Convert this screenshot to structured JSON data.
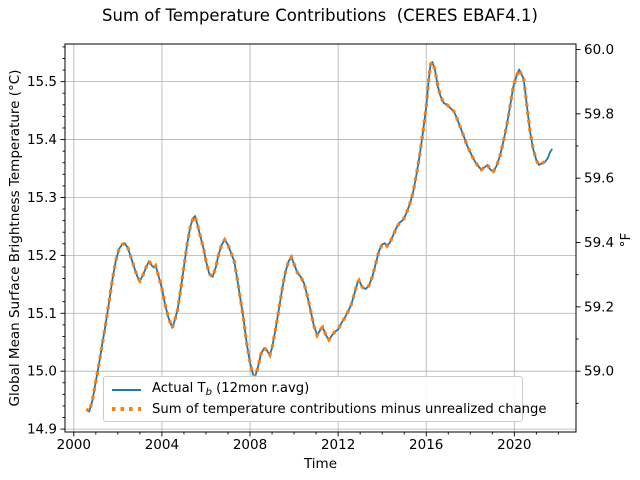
{
  "title": "Sum of Temperature Contributions  (CERES EBAF4.1)",
  "axes": {
    "x": {
      "label": "Time",
      "tick_values": [
        2000,
        2004,
        2008,
        2012,
        2016,
        2020
      ],
      "tick_labels": [
        "2000",
        "2004",
        "2008",
        "2012",
        "2016",
        "2020"
      ]
    },
    "y_left": {
      "label": "Global Mean Surface Brightness Temperature (°C)",
      "tick_values": [
        14.9,
        15.0,
        15.1,
        15.2,
        15.3,
        15.4,
        15.5
      ],
      "tick_labels": [
        "14.9",
        "15.0",
        "15.1",
        "15.2",
        "15.3",
        "15.4",
        "15.5"
      ]
    },
    "y_right": {
      "label": "°F",
      "tick_values": [
        59.0,
        59.2,
        59.4,
        59.6,
        59.8,
        60.0
      ],
      "tick_labels": [
        "59.0",
        "59.2",
        "59.4",
        "59.6",
        "59.8",
        "60.0"
      ]
    }
  },
  "legend": {
    "items": [
      {
        "pre": "Actual T",
        "sub": "b",
        "post": " (12mon r.avg)",
        "color": "#1f77b4",
        "style": "solid"
      },
      {
        "pre": "Sum of temperature contributions minus unrealized change",
        "sub": "",
        "post": "",
        "color": "#ff7f0e",
        "style": "dotted"
      }
    ],
    "position": "lower left"
  },
  "colors": {
    "actual_line": "#1f77b4",
    "sum_dotted": "#ff7f0e",
    "grid": "#b0b0b0",
    "spine": "#000000"
  },
  "chart_data": {
    "type": "line",
    "title": "Sum of Temperature Contributions  (CERES EBAF4.1)",
    "xlabel": "Time",
    "ylabel_left": "Global Mean Surface Brightness Temperature (°C)",
    "ylabel_right": "°F",
    "xlim": [
      1999.6,
      2022.8
    ],
    "ylim_c": [
      14.895,
      15.565
    ],
    "grid": true,
    "legend_position": "lower left",
    "fahrenheit_axis": "F = C * 1.8 + 32",
    "series": [
      {
        "name": "Actual Tb (12mon r.avg)",
        "color": "#1f77b4",
        "style": "solid",
        "x": [
          2000.58,
          2000.7,
          2000.85,
          2001.0,
          2001.15,
          2001.3,
          2001.45,
          2001.6,
          2001.75,
          2001.9,
          2002.05,
          2002.2,
          2002.31,
          2002.45,
          2002.6,
          2002.75,
          2002.9,
          2003.0,
          2003.15,
          2003.3,
          2003.42,
          2003.55,
          2003.65,
          2003.72,
          2003.85,
          2004.0,
          2004.15,
          2004.3,
          2004.47,
          2004.6,
          2004.72,
          2004.85,
          2005.0,
          2005.15,
          2005.3,
          2005.42,
          2005.5,
          2005.62,
          2005.75,
          2005.9,
          2006.0,
          2006.15,
          2006.3,
          2006.45,
          2006.55,
          2006.7,
          2006.85,
          2007.0,
          2007.15,
          2007.28,
          2007.42,
          2007.55,
          2007.7,
          2007.85,
          2008.0,
          2008.13,
          2008.22,
          2008.35,
          2008.5,
          2008.65,
          2008.78,
          2008.9,
          2009.0,
          2009.15,
          2009.3,
          2009.45,
          2009.6,
          2009.75,
          2009.88,
          2010.0,
          2010.15,
          2010.3,
          2010.45,
          2010.6,
          2010.75,
          2010.9,
          2011.05,
          2011.2,
          2011.3,
          2011.45,
          2011.58,
          2011.72,
          2011.85,
          2012.0,
          2012.15,
          2012.3,
          2012.45,
          2012.6,
          2012.75,
          2012.88,
          2012.95,
          2013.1,
          2013.25,
          2013.4,
          2013.55,
          2013.7,
          2013.85,
          2014.0,
          2014.12,
          2014.22,
          2014.35,
          2014.5,
          2014.65,
          2014.8,
          2014.95,
          2015.1,
          2015.25,
          2015.4,
          2015.55,
          2015.7,
          2015.85,
          2016.0,
          2016.1,
          2016.2,
          2016.28,
          2016.4,
          2016.52,
          2016.65,
          2016.8,
          2016.95,
          2017.1,
          2017.25,
          2017.4,
          2017.55,
          2017.7,
          2017.85,
          2018.0,
          2018.15,
          2018.32,
          2018.5,
          2018.65,
          2018.78,
          2018.92,
          2019.05,
          2019.2,
          2019.35,
          2019.5,
          2019.65,
          2019.8,
          2019.95,
          2020.1,
          2020.22,
          2020.33,
          2020.42,
          2020.5,
          2020.6,
          2020.72,
          2020.85,
          2021.0,
          2021.12,
          2021.25,
          2021.4,
          2021.52,
          2021.62,
          2021.72
        ],
        "y": [
          14.935,
          14.93,
          14.95,
          14.982,
          15.014,
          15.048,
          15.082,
          15.12,
          15.158,
          15.19,
          15.211,
          15.219,
          15.221,
          15.213,
          15.196,
          15.178,
          15.162,
          15.156,
          15.167,
          15.181,
          15.19,
          15.182,
          15.179,
          15.182,
          15.164,
          15.143,
          15.114,
          15.092,
          15.075,
          15.09,
          15.108,
          15.14,
          15.18,
          15.22,
          15.251,
          15.264,
          15.268,
          15.252,
          15.232,
          15.21,
          15.19,
          15.168,
          15.163,
          15.18,
          15.198,
          15.217,
          15.227,
          15.218,
          15.203,
          15.19,
          15.16,
          15.128,
          15.092,
          15.048,
          15.015,
          14.995,
          14.99,
          15.005,
          15.03,
          15.04,
          15.035,
          15.028,
          15.04,
          15.07,
          15.105,
          15.14,
          15.17,
          15.19,
          15.197,
          15.185,
          15.17,
          15.163,
          15.152,
          15.13,
          15.105,
          15.078,
          15.062,
          15.072,
          15.076,
          15.062,
          15.054,
          15.062,
          15.068,
          15.072,
          15.083,
          15.092,
          15.103,
          15.115,
          15.135,
          15.153,
          15.157,
          15.145,
          15.142,
          15.148,
          15.163,
          15.185,
          15.207,
          15.219,
          15.221,
          15.216,
          15.222,
          15.235,
          15.248,
          15.257,
          15.261,
          15.273,
          15.288,
          15.308,
          15.338,
          15.372,
          15.412,
          15.456,
          15.498,
          15.53,
          15.534,
          15.52,
          15.493,
          15.475,
          15.463,
          15.46,
          15.454,
          15.449,
          15.436,
          15.421,
          15.406,
          15.39,
          15.378,
          15.366,
          15.356,
          15.348,
          15.352,
          15.356,
          15.348,
          15.345,
          15.355,
          15.372,
          15.396,
          15.423,
          15.456,
          15.49,
          15.51,
          15.521,
          15.512,
          15.505,
          15.482,
          15.45,
          15.412,
          15.385,
          15.364,
          15.356,
          15.359,
          15.362,
          15.368,
          15.378,
          15.384
        ]
      },
      {
        "name": "Sum of temperature contributions minus unrealized change",
        "color": "#ff7f0e",
        "style": "dotted",
        "data_same_as_series": 0,
        "x_max": 2021.45
      }
    ]
  }
}
